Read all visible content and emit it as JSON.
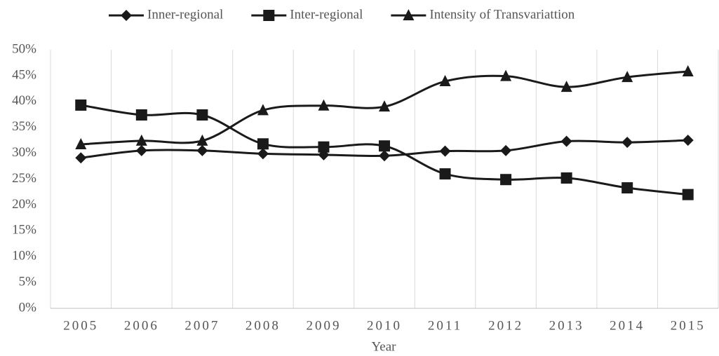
{
  "chart_data": {
    "type": "line",
    "x_label": "Year",
    "categories": [
      "2005",
      "2006",
      "2007",
      "2008",
      "2009",
      "2010",
      "2011",
      "2012",
      "2013",
      "2014",
      "2015"
    ],
    "series": [
      {
        "name": "Inner-regional",
        "color": "#1a1a1a",
        "marker": "diamond",
        "values": [
          29.1,
          30.5,
          30.5,
          29.9,
          29.7,
          29.5,
          30.4,
          30.5,
          32.3,
          32.1,
          32.5
        ]
      },
      {
        "name": "Inter-regional",
        "color": "#1a1a1a",
        "marker": "square",
        "values": [
          39.3,
          37.4,
          37.4,
          31.8,
          31.2,
          31.4,
          26.0,
          24.9,
          25.2,
          23.3,
          22.0
        ]
      },
      {
        "name": "Intensity of Transvariattion",
        "color": "#1a1a1a",
        "marker": "triangle",
        "values": [
          31.7,
          32.4,
          32.4,
          38.3,
          39.2,
          39.0,
          43.9,
          44.9,
          42.8,
          44.7,
          45.8
        ]
      }
    ],
    "ylim": [
      0,
      50
    ],
    "yticks": [
      {
        "value": 0,
        "label": "0%"
      },
      {
        "value": 5,
        "label": "5%"
      },
      {
        "value": 10,
        "label": "10%"
      },
      {
        "value": 15,
        "label": "15%"
      },
      {
        "value": 20,
        "label": "20%"
      },
      {
        "value": 25,
        "label": "25%"
      },
      {
        "value": 30,
        "label": "30%"
      },
      {
        "value": 35,
        "label": "35%"
      },
      {
        "value": 40,
        "label": "40%"
      },
      {
        "value": 45,
        "label": "45%"
      },
      {
        "value": 50,
        "label": "50%"
      }
    ],
    "grid": true
  }
}
